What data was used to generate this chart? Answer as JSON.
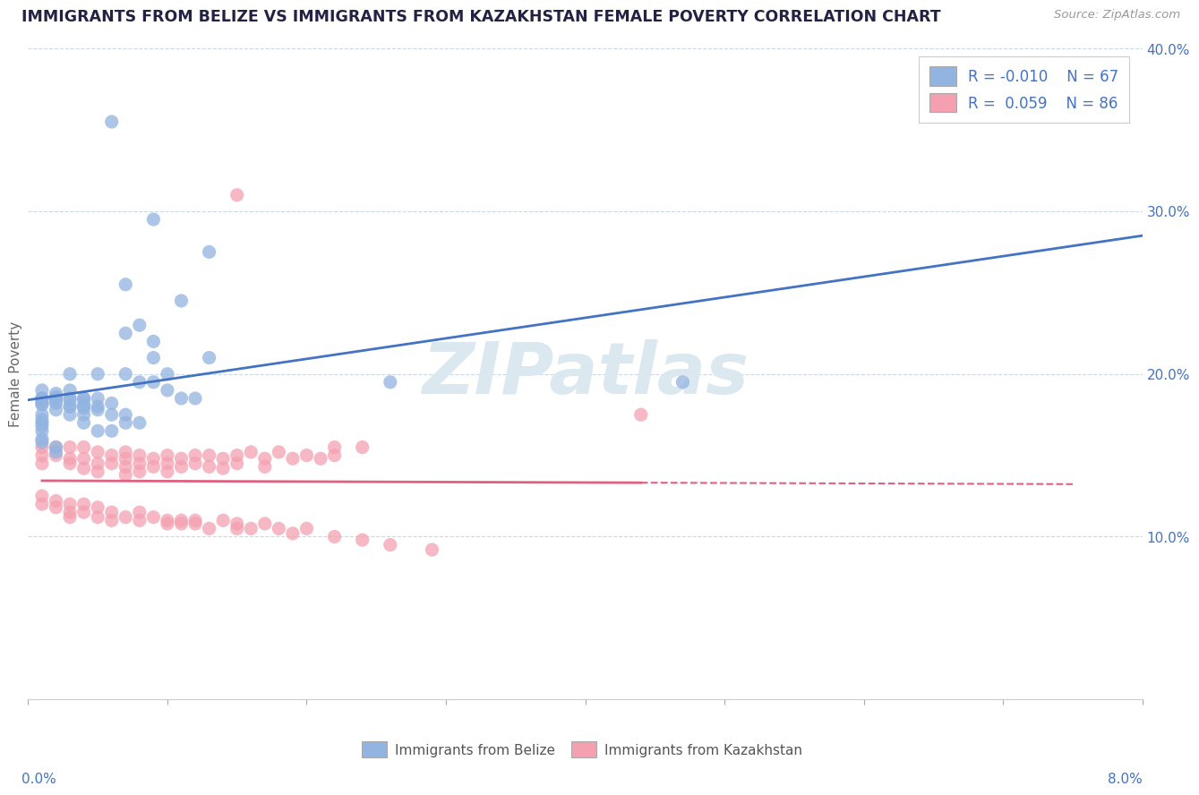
{
  "title": "IMMIGRANTS FROM BELIZE VS IMMIGRANTS FROM KAZAKHSTAN FEMALE POVERTY CORRELATION CHART",
  "source_text": "Source: ZipAtlas.com",
  "ylabel": "Female Poverty",
  "xlim": [
    0.0,
    0.08
  ],
  "ylim": [
    0.0,
    0.4
  ],
  "yticks": [
    0.0,
    0.1,
    0.2,
    0.3,
    0.4
  ],
  "ytick_labels": [
    "",
    "10.0%",
    "20.0%",
    "30.0%",
    "40.0%"
  ],
  "xtick_labels": [
    "0.0%",
    "",
    "",
    "",
    "",
    "",
    "",
    "",
    "8.0%"
  ],
  "legend_R_belize": "-0.010",
  "legend_N_belize": "67",
  "legend_R_kazakh": "0.059",
  "legend_N_kazakh": "86",
  "belize_color": "#92b4e0",
  "kazakh_color": "#f4a0b0",
  "belize_line_color": "#4472c4",
  "kazakh_line_color": "#e06080",
  "watermark_text": "ZIPatlas",
  "watermark_color": "#dce8f0",
  "background_color": "#ffffff",
  "grid_color": "#c8d8e8",
  "title_color": "#222244",
  "axis_label_color": "#4472c4",
  "belize_x": [
    0.006,
    0.009,
    0.013,
    0.007,
    0.011,
    0.008,
    0.007,
    0.009,
    0.009,
    0.013,
    0.003,
    0.005,
    0.007,
    0.008,
    0.009,
    0.01,
    0.01,
    0.011,
    0.012,
    0.003,
    0.004,
    0.004,
    0.005,
    0.006,
    0.007,
    0.002,
    0.003,
    0.004,
    0.005,
    0.006,
    0.007,
    0.008,
    0.001,
    0.002,
    0.003,
    0.003,
    0.004,
    0.004,
    0.005,
    0.005,
    0.006,
    0.001,
    0.001,
    0.002,
    0.002,
    0.003,
    0.003,
    0.004,
    0.004,
    0.001,
    0.001,
    0.001,
    0.002,
    0.002,
    0.002,
    0.001,
    0.026,
    0.047,
    0.001,
    0.001,
    0.001,
    0.001,
    0.001,
    0.001,
    0.001,
    0.002,
    0.002
  ],
  "belize_y": [
    0.355,
    0.295,
    0.275,
    0.255,
    0.245,
    0.23,
    0.225,
    0.22,
    0.21,
    0.21,
    0.2,
    0.2,
    0.2,
    0.195,
    0.195,
    0.2,
    0.19,
    0.185,
    0.185,
    0.19,
    0.185,
    0.175,
    0.18,
    0.175,
    0.175,
    0.185,
    0.175,
    0.17,
    0.165,
    0.165,
    0.17,
    0.17,
    0.185,
    0.185,
    0.185,
    0.18,
    0.185,
    0.18,
    0.185,
    0.178,
    0.182,
    0.19,
    0.185,
    0.182,
    0.178,
    0.184,
    0.18,
    0.182,
    0.179,
    0.185,
    0.183,
    0.181,
    0.188,
    0.186,
    0.183,
    0.182,
    0.195,
    0.195,
    0.175,
    0.172,
    0.17,
    0.168,
    0.165,
    0.16,
    0.158,
    0.155,
    0.152
  ],
  "kazakh_x": [
    0.044,
    0.015,
    0.001,
    0.001,
    0.001,
    0.002,
    0.002,
    0.003,
    0.003,
    0.003,
    0.004,
    0.004,
    0.004,
    0.005,
    0.005,
    0.005,
    0.006,
    0.006,
    0.007,
    0.007,
    0.007,
    0.007,
    0.008,
    0.008,
    0.008,
    0.009,
    0.009,
    0.01,
    0.01,
    0.01,
    0.011,
    0.011,
    0.012,
    0.012,
    0.013,
    0.013,
    0.014,
    0.014,
    0.015,
    0.015,
    0.016,
    0.017,
    0.017,
    0.018,
    0.019,
    0.02,
    0.021,
    0.022,
    0.022,
    0.024,
    0.001,
    0.001,
    0.002,
    0.002,
    0.003,
    0.003,
    0.003,
    0.004,
    0.004,
    0.005,
    0.005,
    0.006,
    0.006,
    0.007,
    0.008,
    0.008,
    0.009,
    0.01,
    0.01,
    0.011,
    0.011,
    0.012,
    0.012,
    0.013,
    0.014,
    0.015,
    0.015,
    0.016,
    0.017,
    0.018,
    0.019,
    0.02,
    0.022,
    0.024,
    0.026,
    0.029
  ],
  "kazakh_y": [
    0.175,
    0.31,
    0.155,
    0.15,
    0.145,
    0.155,
    0.15,
    0.155,
    0.148,
    0.145,
    0.155,
    0.148,
    0.142,
    0.152,
    0.145,
    0.14,
    0.15,
    0.145,
    0.152,
    0.148,
    0.143,
    0.138,
    0.15,
    0.145,
    0.14,
    0.148,
    0.143,
    0.15,
    0.145,
    0.14,
    0.148,
    0.143,
    0.15,
    0.145,
    0.15,
    0.143,
    0.148,
    0.142,
    0.15,
    0.145,
    0.152,
    0.148,
    0.143,
    0.152,
    0.148,
    0.15,
    0.148,
    0.155,
    0.15,
    0.155,
    0.125,
    0.12,
    0.122,
    0.118,
    0.12,
    0.115,
    0.112,
    0.12,
    0.115,
    0.118,
    0.112,
    0.115,
    0.11,
    0.112,
    0.115,
    0.11,
    0.112,
    0.11,
    0.108,
    0.11,
    0.108,
    0.11,
    0.108,
    0.105,
    0.11,
    0.108,
    0.105,
    0.105,
    0.108,
    0.105,
    0.102,
    0.105,
    0.1,
    0.098,
    0.095,
    0.092
  ]
}
